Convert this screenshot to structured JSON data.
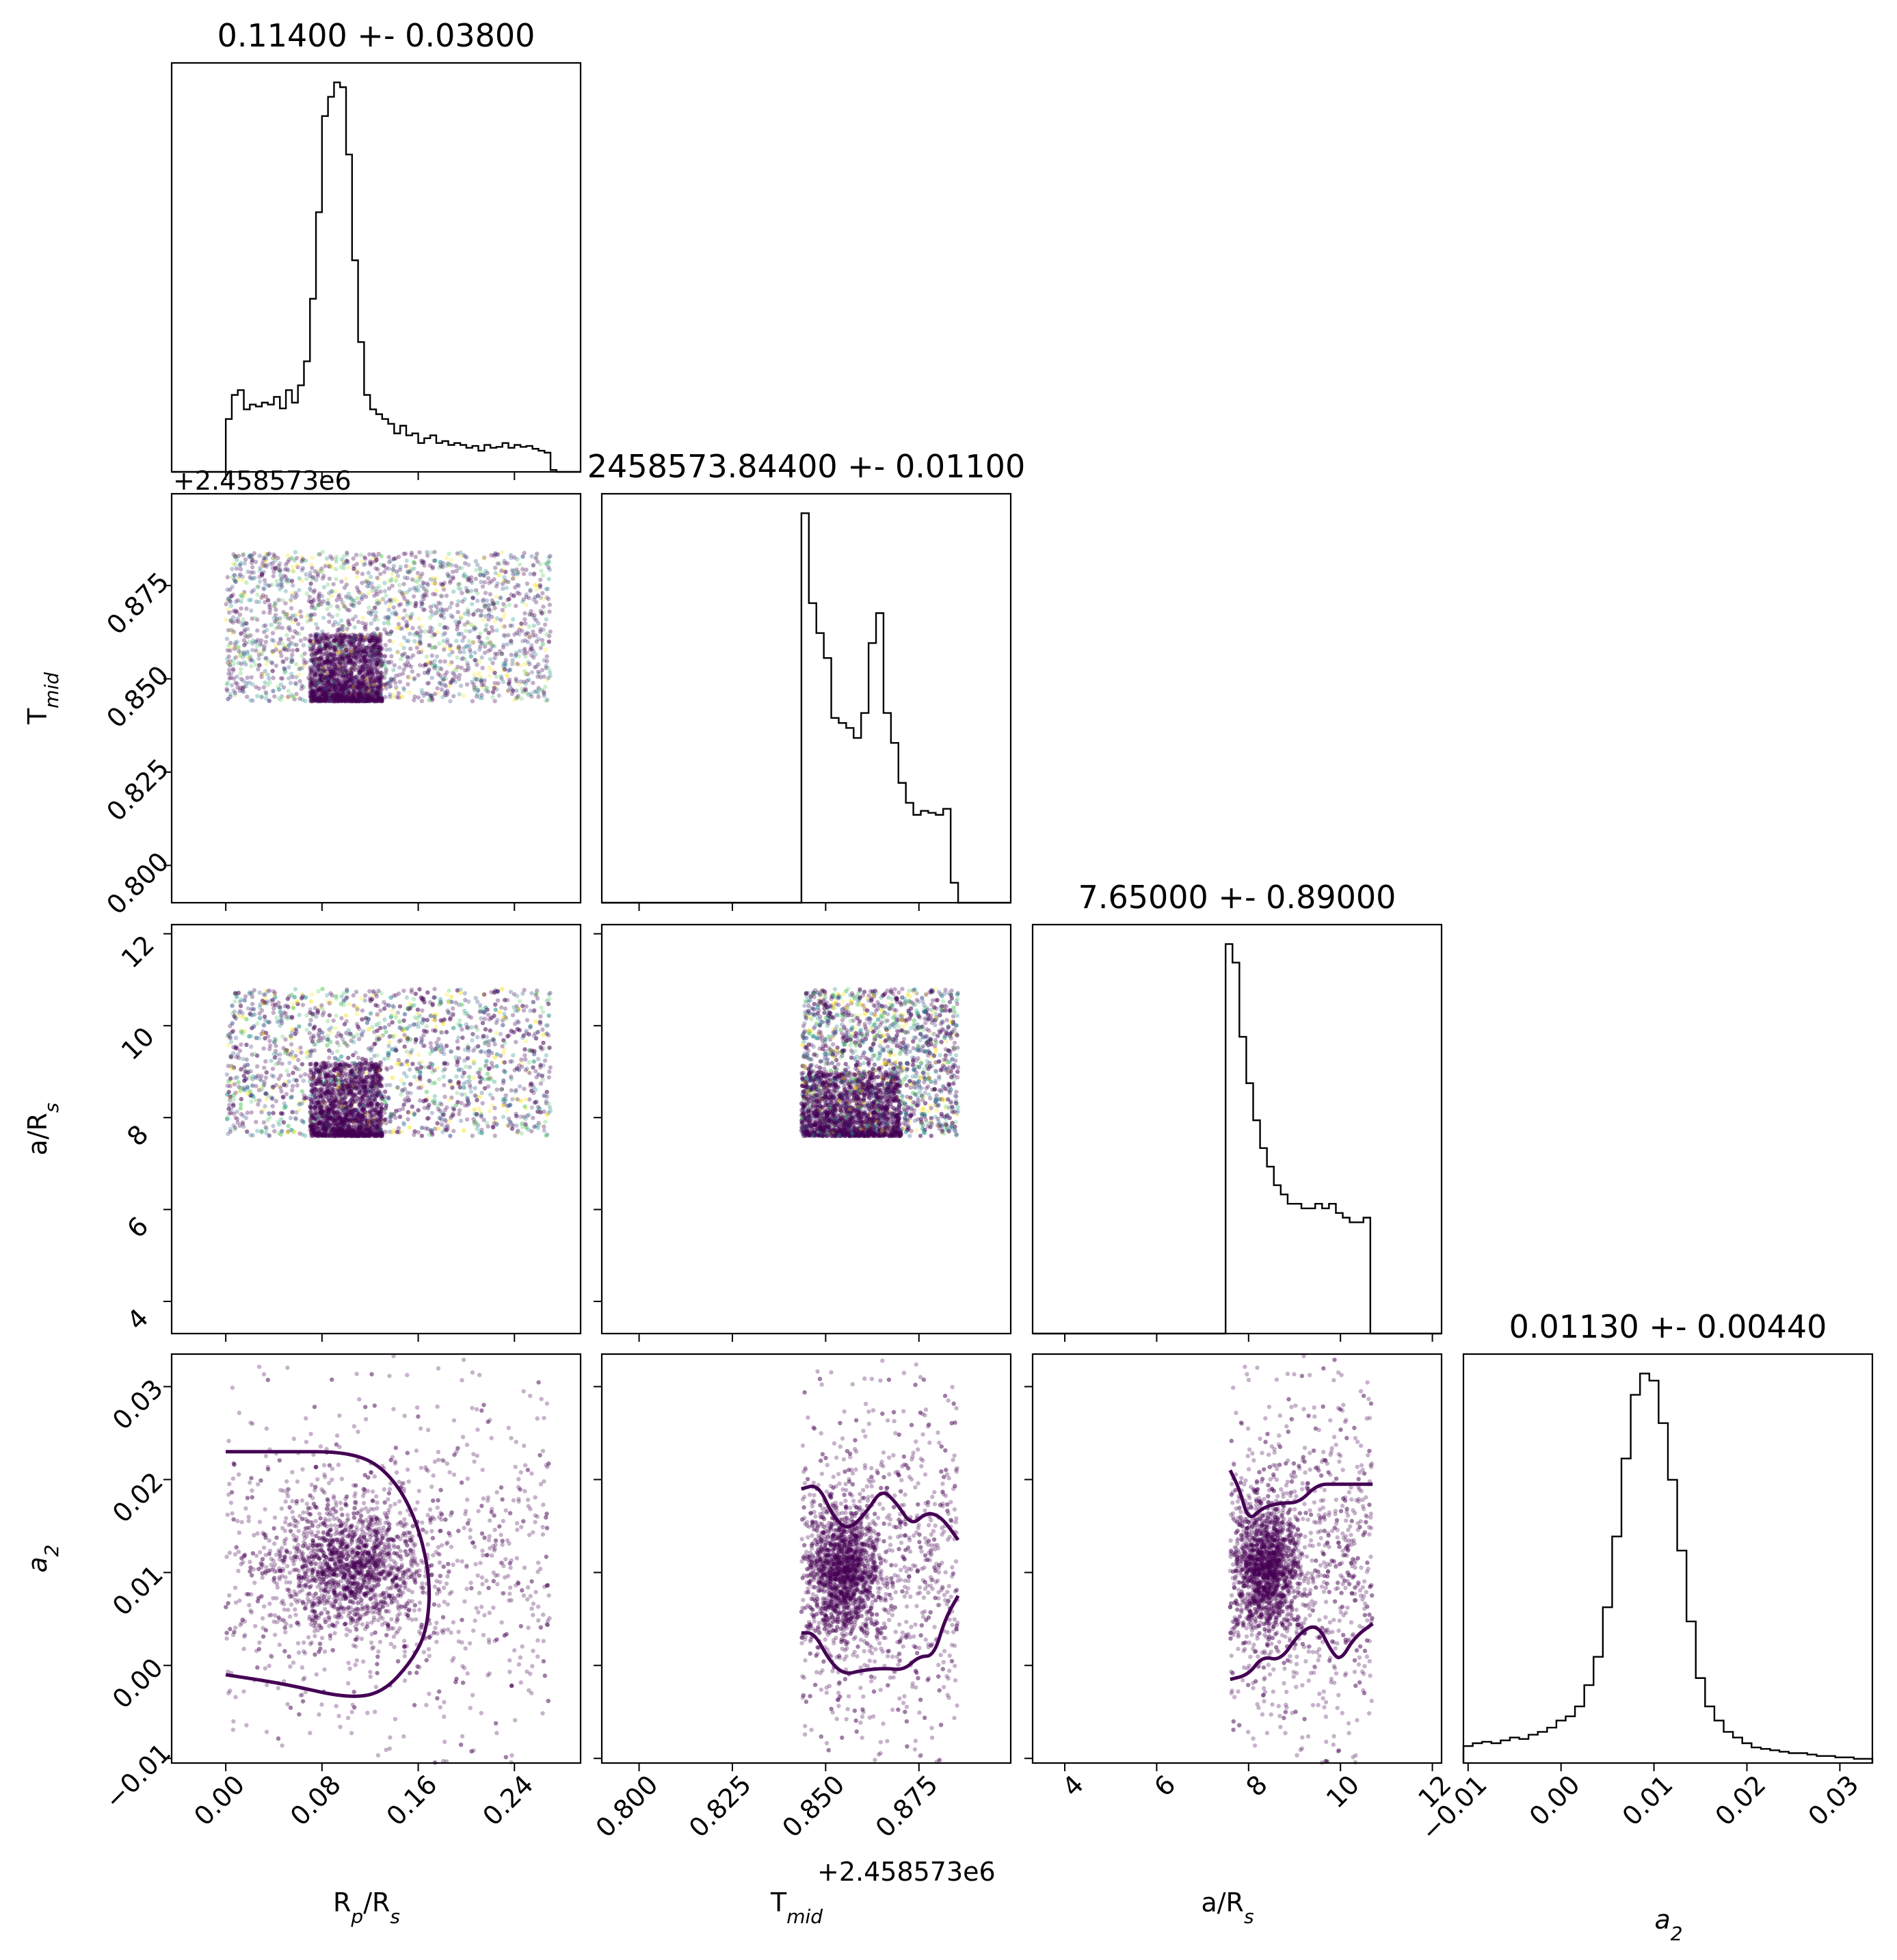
{
  "params": [
    {
      "key": "rp",
      "label_main": "R",
      "label_sub": "p",
      "label_tail": "/R",
      "label_sub2": "s",
      "title": "0.11400 +- 0.03800",
      "range": [
        -0.045,
        0.295
      ],
      "ticks": [
        "0.00",
        "0.08",
        "0.16",
        "0.24"
      ],
      "tick_values": [
        0.0,
        0.08,
        0.16,
        0.24
      ]
    },
    {
      "key": "tmid",
      "label_main": "T",
      "label_sub": "mid",
      "label_tail": "",
      "label_sub2": "",
      "title": "2458573.84400 +- 0.01100",
      "range": [
        0.79,
        0.8996
      ],
      "ticks": [
        "0.800",
        "0.825",
        "0.850",
        "0.875"
      ],
      "tick_values": [
        0.8,
        0.825,
        0.85,
        0.875
      ],
      "offset": "+2.458573e6"
    },
    {
      "key": "ars",
      "label_main": "a/R",
      "label_sub": "s",
      "label_tail": "",
      "label_sub2": "",
      "title": "7.65000 +- 0.89000",
      "range": [
        3.3,
        12.2
      ],
      "ticks": [
        "4",
        "6",
        "8",
        "10",
        "12"
      ],
      "tick_values": [
        4,
        6,
        8,
        10,
        12
      ]
    },
    {
      "key": "a2",
      "label_main": "a",
      "label_sub": "2",
      "label_tail": "",
      "label_sub2": "",
      "label_italic": true,
      "title": "0.01130 +- 0.00440",
      "range": [
        -0.0105,
        0.0335
      ],
      "ticks": [
        "−0.01",
        "0.00",
        "0.01",
        "0.02",
        "0.03"
      ],
      "tick_values": [
        -0.01,
        0.0,
        0.01,
        0.02,
        0.03
      ]
    }
  ],
  "chart_data": {
    "type": "corner",
    "histograms": [
      {
        "param": "R_p/R_s",
        "title": "0.11400 +- 0.03800",
        "bin_edges": [
          0.0,
          0.005,
          0.01,
          0.015,
          0.02,
          0.025,
          0.03,
          0.035,
          0.04,
          0.045,
          0.05,
          0.055,
          0.06,
          0.065,
          0.07,
          0.075,
          0.08,
          0.085,
          0.09,
          0.095,
          0.1,
          0.105,
          0.11,
          0.115,
          0.12,
          0.125,
          0.13,
          0.135,
          0.14,
          0.145,
          0.15,
          0.155,
          0.16,
          0.165,
          0.17,
          0.175,
          0.18,
          0.185,
          0.19,
          0.195,
          0.2,
          0.205,
          0.21,
          0.215,
          0.22,
          0.225,
          0.23,
          0.235,
          0.24,
          0.245,
          0.25,
          0.255,
          0.26,
          0.265,
          0.27,
          0.275
        ],
        "counts": [
          55,
          80,
          85,
          65,
          70,
          68,
          72,
          70,
          78,
          66,
          85,
          72,
          90,
          115,
          180,
          270,
          370,
          390,
          405,
          400,
          330,
          220,
          135,
          80,
          65,
          60,
          55,
          50,
          40,
          48,
          38,
          40,
          30,
          35,
          38,
          30,
          32,
          28,
          30,
          28,
          25,
          27,
          22,
          28,
          25,
          26,
          30,
          25,
          28,
          26,
          27,
          24,
          22,
          20,
          2
        ]
      },
      {
        "param": "T_mid",
        "title": "2458573.84400 +- 0.01100",
        "bin_edges": [
          0.8435,
          0.8455,
          0.8475,
          0.8495,
          0.8515,
          0.8535,
          0.8555,
          0.8575,
          0.8595,
          0.8615,
          0.8635,
          0.8655,
          0.8675,
          0.8695,
          0.8715,
          0.8735,
          0.8755,
          0.8775,
          0.8795,
          0.8815,
          0.8835,
          0.8855
        ],
        "counts": [
          390,
          300,
          270,
          245,
          185,
          180,
          175,
          165,
          190,
          260,
          290,
          190,
          160,
          120,
          100,
          88,
          92,
          90,
          88,
          94,
          20
        ]
      },
      {
        "param": "a/R_s",
        "title": "7.65000 +- 0.89000",
        "bin_edges": [
          7.5,
          7.65,
          7.8,
          7.95,
          8.1,
          8.25,
          8.4,
          8.55,
          8.7,
          8.85,
          9.0,
          9.15,
          9.3,
          9.45,
          9.6,
          9.75,
          9.9,
          10.05,
          10.2,
          10.35,
          10.5,
          10.65,
          10.7
        ],
        "counts": [
          420,
          400,
          320,
          270,
          230,
          200,
          180,
          160,
          150,
          140,
          140,
          135,
          135,
          140,
          135,
          140,
          130,
          125,
          120,
          120,
          125,
          0
        ]
      },
      {
        "param": "a_2",
        "title": "0.01130 +- 0.00440",
        "bin_edges": [
          -0.0105,
          -0.0095,
          -0.0085,
          -0.0075,
          -0.0065,
          -0.0055,
          -0.0045,
          -0.0035,
          -0.0025,
          -0.0015,
          -0.0005,
          0.0005,
          0.0015,
          0.0025,
          0.0035,
          0.0045,
          0.0055,
          0.0065,
          0.0075,
          0.0085,
          0.0095,
          0.0105,
          0.0115,
          0.0125,
          0.0135,
          0.0145,
          0.0155,
          0.0165,
          0.0175,
          0.0185,
          0.0195,
          0.0205,
          0.0215,
          0.0225,
          0.0235,
          0.0245,
          0.0255,
          0.0265,
          0.0275,
          0.0285,
          0.0295,
          0.0305,
          0.0315,
          0.0325,
          0.0335
        ],
        "counts": [
          12,
          14,
          15,
          14,
          16,
          18,
          17,
          20,
          22,
          25,
          30,
          33,
          40,
          55,
          75,
          110,
          160,
          215,
          260,
          275,
          270,
          240,
          200,
          150,
          100,
          60,
          40,
          30,
          22,
          18,
          14,
          11,
          10,
          9,
          8,
          7,
          7,
          6,
          5,
          5,
          4,
          4,
          3,
          3
        ]
      }
    ],
    "scatter_regions": [
      {
        "x": "R_p/R_s",
        "y": "T_mid",
        "x_range": [
          0.0,
          0.27
        ],
        "y_range": [
          0.844,
          0.884
        ],
        "core": {
          "x": [
            0.07,
            0.13
          ],
          "y": [
            0.844,
            0.862
          ]
        }
      },
      {
        "x": "R_p/R_s",
        "y": "a/R_s",
        "x_range": [
          0.0,
          0.27
        ],
        "y_range": [
          7.6,
          10.8
        ],
        "core": {
          "x": [
            0.07,
            0.13
          ],
          "y": [
            7.6,
            9.2
          ]
        }
      },
      {
        "x": "T_mid",
        "y": "a/R_s",
        "x_range": [
          0.8435,
          0.8855
        ],
        "y_range": [
          7.6,
          10.8
        ],
        "core": {
          "x": [
            0.8435,
            0.87
          ],
          "y": [
            7.6,
            9.0
          ]
        }
      },
      {
        "x": "R_p/R_s",
        "y": "a_2",
        "x_range": [
          0.0,
          0.27
        ],
        "y_range": [
          -0.0105,
          0.0335
        ],
        "center": [
          0.105,
          0.0105
        ]
      },
      {
        "x": "T_mid",
        "y": "a_2",
        "x_range": [
          0.8435,
          0.8855
        ],
        "y_range": [
          -0.0105,
          0.0335
        ],
        "center": [
          0.855,
          0.01
        ]
      },
      {
        "x": "a/R_s",
        "y": "a_2",
        "x_range": [
          7.6,
          10.7
        ],
        "y_range": [
          -0.0105,
          0.0335
        ],
        "center": [
          8.4,
          0.0105
        ]
      }
    ],
    "contours": [
      {
        "panel": "Rp_vs_a2",
        "points": [
          [
            0.0,
            0.023
          ],
          [
            0.05,
            0.023
          ],
          [
            0.1,
            0.023
          ],
          [
            0.13,
            0.0215
          ],
          [
            0.155,
            0.017
          ],
          [
            0.17,
            0.01
          ],
          [
            0.168,
            0.004
          ],
          [
            0.155,
            0.0005
          ],
          [
            0.13,
            -0.003
          ],
          [
            0.1,
            -0.0035
          ],
          [
            0.05,
            -0.002
          ],
          [
            0.0,
            -0.001
          ]
        ]
      },
      {
        "panel": "Tmid_vs_a2_upper",
        "points": [
          [
            0.8435,
            0.019
          ],
          [
            0.848,
            0.0195
          ],
          [
            0.852,
            0.016
          ],
          [
            0.856,
            0.0145
          ],
          [
            0.861,
            0.0165
          ],
          [
            0.865,
            0.019
          ],
          [
            0.869,
            0.0175
          ],
          [
            0.873,
            0.015
          ],
          [
            0.877,
            0.0165
          ],
          [
            0.881,
            0.016
          ],
          [
            0.8855,
            0.0135
          ]
        ]
      },
      {
        "panel": "Tmid_vs_a2_lower",
        "points": [
          [
            0.8435,
            0.0035
          ],
          [
            0.847,
            0.0035
          ],
          [
            0.851,
            0.0005
          ],
          [
            0.855,
            -0.001
          ],
          [
            0.86,
            -0.0005
          ],
          [
            0.866,
            -0.0003
          ],
          [
            0.871,
            -0.0005
          ],
          [
            0.875,
            0.001
          ],
          [
            0.879,
            0.001
          ],
          [
            0.882,
            0.005
          ],
          [
            0.8855,
            0.0075
          ]
        ]
      },
      {
        "panel": "ars_vs_a2_upper",
        "points": [
          [
            7.6,
            0.021
          ],
          [
            7.8,
            0.019
          ],
          [
            8.0,
            0.0155
          ],
          [
            8.3,
            0.017
          ],
          [
            8.7,
            0.0175
          ],
          [
            9.1,
            0.0175
          ],
          [
            9.5,
            0.0195
          ],
          [
            9.9,
            0.0195
          ],
          [
            10.3,
            0.0195
          ],
          [
            10.7,
            0.0195
          ]
        ]
      },
      {
        "panel": "ars_vs_a2_lower",
        "points": [
          [
            7.6,
            -0.0015
          ],
          [
            8.0,
            -0.001
          ],
          [
            8.3,
            0.001
          ],
          [
            8.7,
            0.0005
          ],
          [
            9.1,
            0.0035
          ],
          [
            9.5,
            0.0045
          ],
          [
            9.8,
            0.0015
          ],
          [
            10.0,
            0.0005
          ],
          [
            10.3,
            0.003
          ],
          [
            10.7,
            0.0045
          ]
        ]
      }
    ]
  }
}
